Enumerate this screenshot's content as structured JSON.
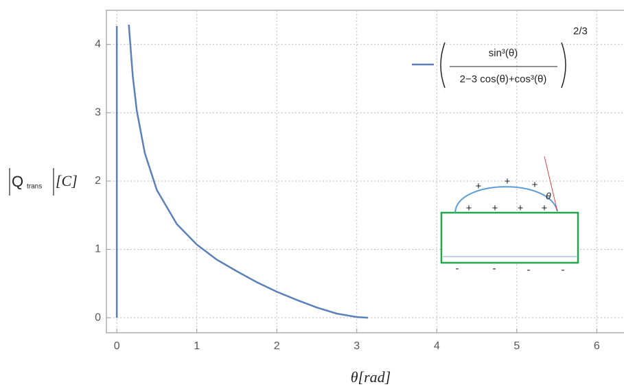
{
  "chart_data": {
    "type": "line",
    "x": [
      0,
      0,
      null,
      0.15,
      0.2,
      0.25,
      0.35,
      0.5,
      0.75,
      1,
      1.25,
      1.5,
      1.75,
      2,
      2.25,
      2.5,
      2.75,
      3,
      3.14
    ],
    "series": [
      {
        "color": "#5b7fb8",
        "values": [
          0,
          4.27,
          null,
          4.29,
          3.53,
          3.03,
          2.41,
          1.87,
          1.37,
          1.07,
          0.85,
          0.68,
          0.52,
          0.38,
          0.26,
          0.15,
          0.06,
          0.01,
          0
        ]
      }
    ],
    "legend": {
      "numerator": "sin³(θ)",
      "denominator": "2−3 cos(θ)+cos³(θ)",
      "exponent": "2/3"
    },
    "xlabel": "θ[rad]",
    "ylabel": {
      "main": "Q",
      "sub": "trans",
      "unit": "[C]"
    },
    "xlim": [
      -0.13,
      6.34
    ],
    "ylim": [
      -0.22,
      4.5
    ],
    "xticks": [
      0,
      1,
      2,
      3,
      4,
      5,
      6
    ],
    "yticks": [
      0,
      1,
      2,
      3,
      4
    ],
    "grid": true,
    "inset": {
      "plus_signs": [
        "+",
        "+",
        "+",
        "+",
        "+",
        "+",
        "+"
      ],
      "minus_signs": [
        "-",
        "-",
        "-",
        "-"
      ],
      "angle": "θ"
    }
  }
}
